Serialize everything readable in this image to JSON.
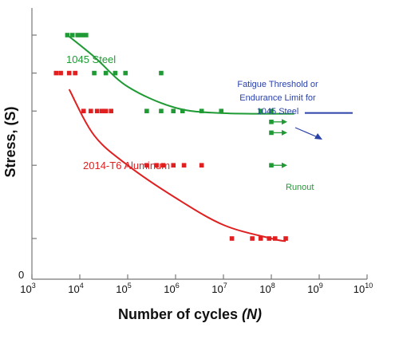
{
  "chart_data": {
    "type": "scatter",
    "title": "",
    "xlabel": "Number of cycles",
    "xlabel_var": "(N)",
    "ylabel": "Stress, (S)",
    "x_scale": "log",
    "x_exponent_range": [
      3,
      10
    ],
    "x_tick_base": "10",
    "x_tick_exponents": [
      "3",
      "4",
      "5",
      "6",
      "7",
      "8",
      "9",
      "10"
    ],
    "ylim": [
      0,
      1
    ],
    "y_tick_labels": [
      "0"
    ],
    "grid": false,
    "series": [
      {
        "name": "1045 Steel",
        "color": "#1f9a34",
        "points": [
          [
            5500,
            0.9
          ],
          [
            7000,
            0.9
          ],
          [
            9000,
            0.9
          ],
          [
            11000,
            0.9
          ],
          [
            13500,
            0.9
          ],
          [
            20000,
            0.76
          ],
          [
            35000,
            0.76
          ],
          [
            55000,
            0.76
          ],
          [
            90000,
            0.76
          ],
          [
            500000,
            0.76
          ],
          [
            250000,
            0.62
          ],
          [
            500000,
            0.62
          ],
          [
            900000,
            0.62
          ],
          [
            1400000,
            0.62
          ],
          [
            3500000,
            0.62
          ],
          [
            9000000,
            0.62
          ],
          [
            60000000,
            0.62
          ],
          [
            100000000,
            0.62
          ],
          [
            100000000,
            0.58
          ],
          [
            100000000,
            0.54
          ],
          [
            100000000,
            0.42
          ]
        ],
        "fit_curve": [
          [
            5500,
            0.9
          ],
          [
            20000,
            0.82
          ],
          [
            100000,
            0.71
          ],
          [
            1000000,
            0.632
          ],
          [
            10000000,
            0.612
          ],
          [
            300000000,
            0.61
          ]
        ]
      },
      {
        "name": "2014-T6 Aluminum",
        "color": "#e02020",
        "points": [
          [
            3200,
            0.76
          ],
          [
            4000,
            0.76
          ],
          [
            6000,
            0.76
          ],
          [
            8000,
            0.76
          ],
          [
            12000,
            0.62
          ],
          [
            17000,
            0.62
          ],
          [
            23000,
            0.62
          ],
          [
            29000,
            0.62
          ],
          [
            35000,
            0.62
          ],
          [
            45000,
            0.62
          ],
          [
            250000,
            0.42
          ],
          [
            400000,
            0.42
          ],
          [
            550000,
            0.42
          ],
          [
            900000,
            0.42
          ],
          [
            1500000,
            0.42
          ],
          [
            3500000,
            0.42
          ],
          [
            15000000,
            0.15
          ],
          [
            40000000,
            0.15
          ],
          [
            60000000,
            0.15
          ],
          [
            90000000,
            0.15
          ],
          [
            120000000,
            0.15
          ],
          [
            200000000,
            0.15
          ]
        ],
        "fit_curve": [
          [
            6000,
            0.7
          ],
          [
            20000,
            0.53
          ],
          [
            100000,
            0.42
          ],
          [
            1000000,
            0.3
          ],
          [
            10000000,
            0.2
          ],
          [
            100000000,
            0.15
          ],
          [
            200000000,
            0.14
          ]
        ]
      }
    ],
    "runout_x": 100000000,
    "runout_y_levels": [
      0.58,
      0.54,
      0.42
    ],
    "endurance_limit": {
      "value": 0.61,
      "x_range": [
        500000000,
        5000000000
      ],
      "color": "#2a41a8"
    },
    "annotations": {
      "steel_label": "1045 Steel",
      "aluminum_label": "2014-T6 Aluminum",
      "endurance_line1": "Fatigue Threshold or",
      "endurance_line2": "Endurance Limit for",
      "endurance_line3": "1045 Steel",
      "runout_label": "Runout"
    }
  }
}
